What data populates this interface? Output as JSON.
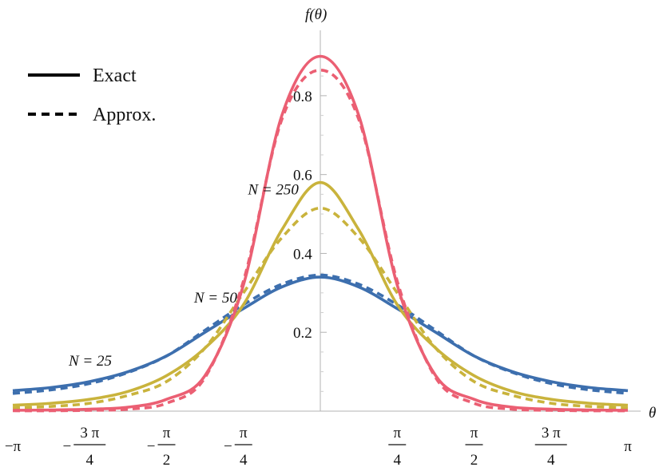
{
  "chart_data": {
    "type": "line",
    "xlabel": "θ",
    "ylabel": "f(θ)",
    "xlim": [
      -3.14159,
      3.14159
    ],
    "ylim": [
      0,
      0.9
    ],
    "x_ticks": [
      {
        "value": -3.14159,
        "label": "−π"
      },
      {
        "value": -2.35619,
        "sign": "−",
        "num": "3 π",
        "den": "4"
      },
      {
        "value": -1.5708,
        "sign": "−",
        "num": "π",
        "den": "2"
      },
      {
        "value": -0.7854,
        "sign": "−",
        "num": "π",
        "den": "4"
      },
      {
        "value": 0.7854,
        "sign": "",
        "num": "π",
        "den": "4"
      },
      {
        "value": 1.5708,
        "sign": "",
        "num": "π",
        "den": "2"
      },
      {
        "value": 2.35619,
        "sign": "",
        "num": "3 π",
        "den": "4"
      },
      {
        "value": 3.14159,
        "label": "π"
      }
    ],
    "y_ticks": [
      {
        "value": 0.2,
        "label": "0.2"
      },
      {
        "value": 0.4,
        "label": "0.4"
      },
      {
        "value": 0.6,
        "label": "0.6"
      },
      {
        "value": 0.8,
        "label": "0.8"
      }
    ],
    "legend": {
      "position": "top-left",
      "entries": [
        {
          "label": "Exact",
          "style": "solid"
        },
        {
          "label": "Approx.",
          "style": "dashed"
        }
      ]
    },
    "series_labels": [
      {
        "text": "N = 25",
        "x": -2.35,
        "y": 0.115,
        "color": "#3d6fae"
      },
      {
        "text": "N = 50",
        "x": -1.07,
        "y": 0.275,
        "color": "#c9b33c"
      },
      {
        "text": "N = 250",
        "x": -0.48,
        "y": 0.55,
        "color": "#eb5f73"
      }
    ],
    "x": [
      -3.14159,
      -2.74889,
      -2.35619,
      -1.9635,
      -1.5708,
      -1.1781,
      -0.7854,
      -0.3927,
      0,
      0.3927,
      0.7854,
      1.1781,
      1.5708,
      1.9635,
      2.35619,
      2.74889,
      3.14159
    ],
    "series": [
      {
        "group": "N = 25",
        "style": "solid",
        "color": "#3d6fae",
        "values": [
          0.052,
          0.06,
          0.075,
          0.1,
          0.14,
          0.2,
          0.26,
          0.315,
          0.34,
          0.315,
          0.26,
          0.2,
          0.14,
          0.1,
          0.075,
          0.06,
          0.052
        ]
      },
      {
        "group": "N = 25",
        "style": "dashed",
        "color": "#3d6fae",
        "values": [
          0.045,
          0.054,
          0.07,
          0.098,
          0.14,
          0.205,
          0.27,
          0.322,
          0.345,
          0.322,
          0.27,
          0.205,
          0.14,
          0.098,
          0.07,
          0.054,
          0.045
        ]
      },
      {
        "group": "N = 50",
        "style": "solid",
        "color": "#c9b33c",
        "values": [
          0.015,
          0.02,
          0.03,
          0.05,
          0.09,
          0.16,
          0.27,
          0.46,
          0.58,
          0.46,
          0.27,
          0.16,
          0.09,
          0.05,
          0.03,
          0.02,
          0.015
        ]
      },
      {
        "group": "N = 50",
        "style": "dashed",
        "color": "#c9b33c",
        "values": [
          0.008,
          0.012,
          0.02,
          0.04,
          0.075,
          0.16,
          0.3,
          0.44,
          0.515,
          0.44,
          0.3,
          0.16,
          0.075,
          0.04,
          0.02,
          0.012,
          0.008
        ]
      },
      {
        "group": "N = 250",
        "style": "solid",
        "color": "#eb5f73",
        "values": [
          0.002,
          0.003,
          0.005,
          0.01,
          0.03,
          0.09,
          0.32,
          0.75,
          0.9,
          0.75,
          0.32,
          0.09,
          0.03,
          0.01,
          0.005,
          0.003,
          0.002
        ]
      },
      {
        "group": "N = 250",
        "style": "dashed",
        "color": "#eb5f73",
        "values": [
          0.001,
          0.001,
          0.002,
          0.005,
          0.02,
          0.085,
          0.33,
          0.74,
          0.865,
          0.74,
          0.33,
          0.085,
          0.02,
          0.005,
          0.002,
          0.001,
          0.001
        ]
      }
    ]
  }
}
